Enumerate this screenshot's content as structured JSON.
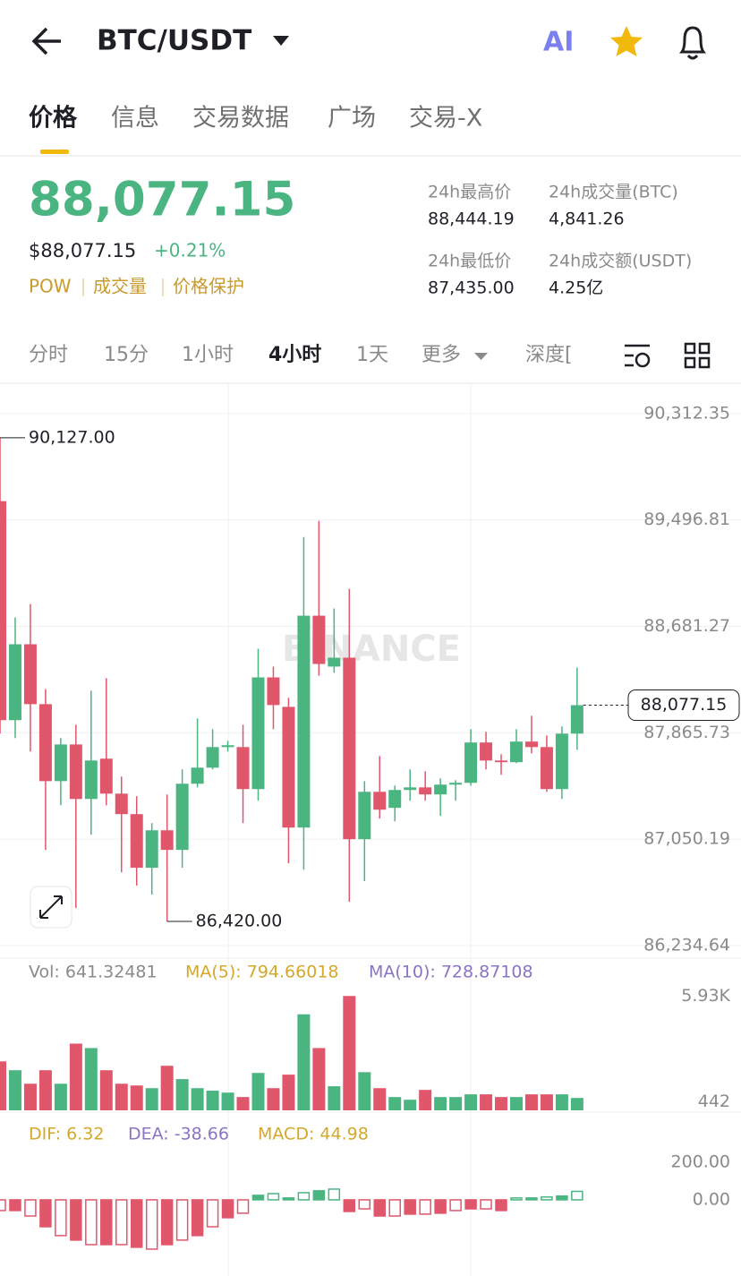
{
  "header": {
    "pair": "BTC/USDT",
    "ai_label": "AI"
  },
  "tabs": [
    "价格",
    "信息",
    "交易数据",
    "广场",
    "交易-X"
  ],
  "ticker": {
    "price": "88,077.15",
    "usd_price": "$88,077.15",
    "change": "+0.21%",
    "tags": [
      "POW",
      "成交量",
      "价格保护"
    ],
    "stats": [
      {
        "label": "24h最高价",
        "value": "88,444.19"
      },
      {
        "label": "24h成交量(BTC)",
        "value": "4,841.26"
      },
      {
        "label": "24h最低价",
        "value": "87,435.00"
      },
      {
        "label": "24h成交额(USDT)",
        "value": "4.25亿"
      }
    ]
  },
  "intervals": [
    "分时",
    "15分",
    "1小时",
    "4小时",
    "1天",
    "更多",
    "深度["
  ],
  "chart_data": {
    "type": "candlestick",
    "ylim": [
      86152,
      90531
    ],
    "yticks": [
      {
        "value": 90312.35,
        "label": "90,312.35"
      },
      {
        "value": 89496.81,
        "label": "89,496.81"
      },
      {
        "value": 88681.27,
        "label": "88,681.27"
      },
      {
        "value": 87865.73,
        "label": "87,865.73"
      },
      {
        "value": 87050.19,
        "label": "87,050.19"
      },
      {
        "value": 86234.64,
        "label": "86,234.64"
      }
    ],
    "up_color": "#4bb581",
    "down_color": "#e0566a",
    "open": [
      89641,
      87962,
      88544,
      88085,
      87495,
      87776,
      87358,
      87667,
      87399,
      87242,
      86831,
      87118,
      86968,
      87475,
      87598,
      87756,
      87756,
      87434,
      88290,
      88064,
      87139,
      88763,
      88373,
      88441,
      87050,
      87413,
      87290,
      87427,
      87447,
      87393,
      87468,
      87482,
      87791,
      87653,
      87640,
      87798,
      87756,
      87434,
      87859
    ],
    "high": [
      90127,
      88750,
      88852,
      88201,
      87825,
      87927,
      88188,
      88284,
      87530,
      87379,
      87173,
      87393,
      87585,
      87975,
      87893,
      87804,
      87927,
      88510,
      88373,
      88133,
      89366,
      89490,
      88818,
      88969,
      87495,
      87687,
      87461,
      87585,
      87571,
      87516,
      87502,
      87893,
      87873,
      87701,
      87893,
      87996,
      87845,
      87914,
      88366
    ],
    "low": [
      87859,
      87825,
      87722,
      86968,
      87310,
      86522,
      87084,
      87310,
      86796,
      86694,
      86625,
      86420,
      86831,
      87447,
      87585,
      87722,
      87173,
      87345,
      87893,
      86865,
      86817,
      88304,
      88325,
      86570,
      86728,
      87208,
      87187,
      87345,
      87345,
      87228,
      87345,
      87461,
      87585,
      87544,
      87633,
      87708,
      87413,
      87358,
      87735
    ],
    "close": [
      87962,
      88544,
      88085,
      87495,
      87776,
      87358,
      87653,
      87399,
      87242,
      86831,
      87118,
      86968,
      87475,
      87598,
      87756,
      87770,
      87434,
      88290,
      88078,
      87139,
      88763,
      88393,
      88441,
      87050,
      87413,
      87276,
      87427,
      87447,
      87393,
      87468,
      87482,
      87791,
      87653,
      87640,
      87798,
      87756,
      87434,
      87859,
      88077.15
    ],
    "max_label": "90,127.00",
    "min_label": "86,420.00",
    "last_label": "88,077.15",
    "watermark": "BINANCE",
    "volume": {
      "legend": [
        "Vol: 641.32481",
        "MA(5): 794.66018",
        "MA(10): 728.87108"
      ],
      "ylim": [
        0,
        6500
      ],
      "yticks": [
        {
          "value": 5930,
          "label": "5.93K"
        },
        442
      ],
      "values": [
        2540,
        2080,
        1380,
        2080,
        1380,
        3460,
        3230,
        2080,
        1380,
        1290,
        1150,
        2310,
        1620,
        1150,
        1020,
        920,
        690,
        1940,
        1150,
        1850,
        4980,
        3230,
        1250,
        5930,
        1980,
        1150,
        690,
        550,
        1060,
        690,
        690,
        830,
        830,
        690,
        690,
        830,
        830,
        830,
        641.32481
      ]
    },
    "macd": {
      "legend": [
        "DIF: 6.32",
        "DEA: -38.66",
        "MACD: 44.98"
      ],
      "ylim": [
        -381,
        428
      ],
      "yticks": [
        {
          "value": 200,
          "label": "200.00"
        },
        {
          "value": 0,
          "label": "0.00"
        }
      ],
      "values": [
        -57,
        -57,
        -86,
        -143,
        -190,
        -214,
        -238,
        -238,
        -238,
        -252,
        -262,
        -238,
        -214,
        -190,
        -143,
        -95,
        -71,
        24,
        33,
        10,
        38,
        48,
        57,
        -62,
        -48,
        -86,
        -86,
        -76,
        -76,
        -71,
        -57,
        -48,
        -48,
        -57,
        10,
        10,
        15,
        20,
        44.98
      ]
    }
  }
}
